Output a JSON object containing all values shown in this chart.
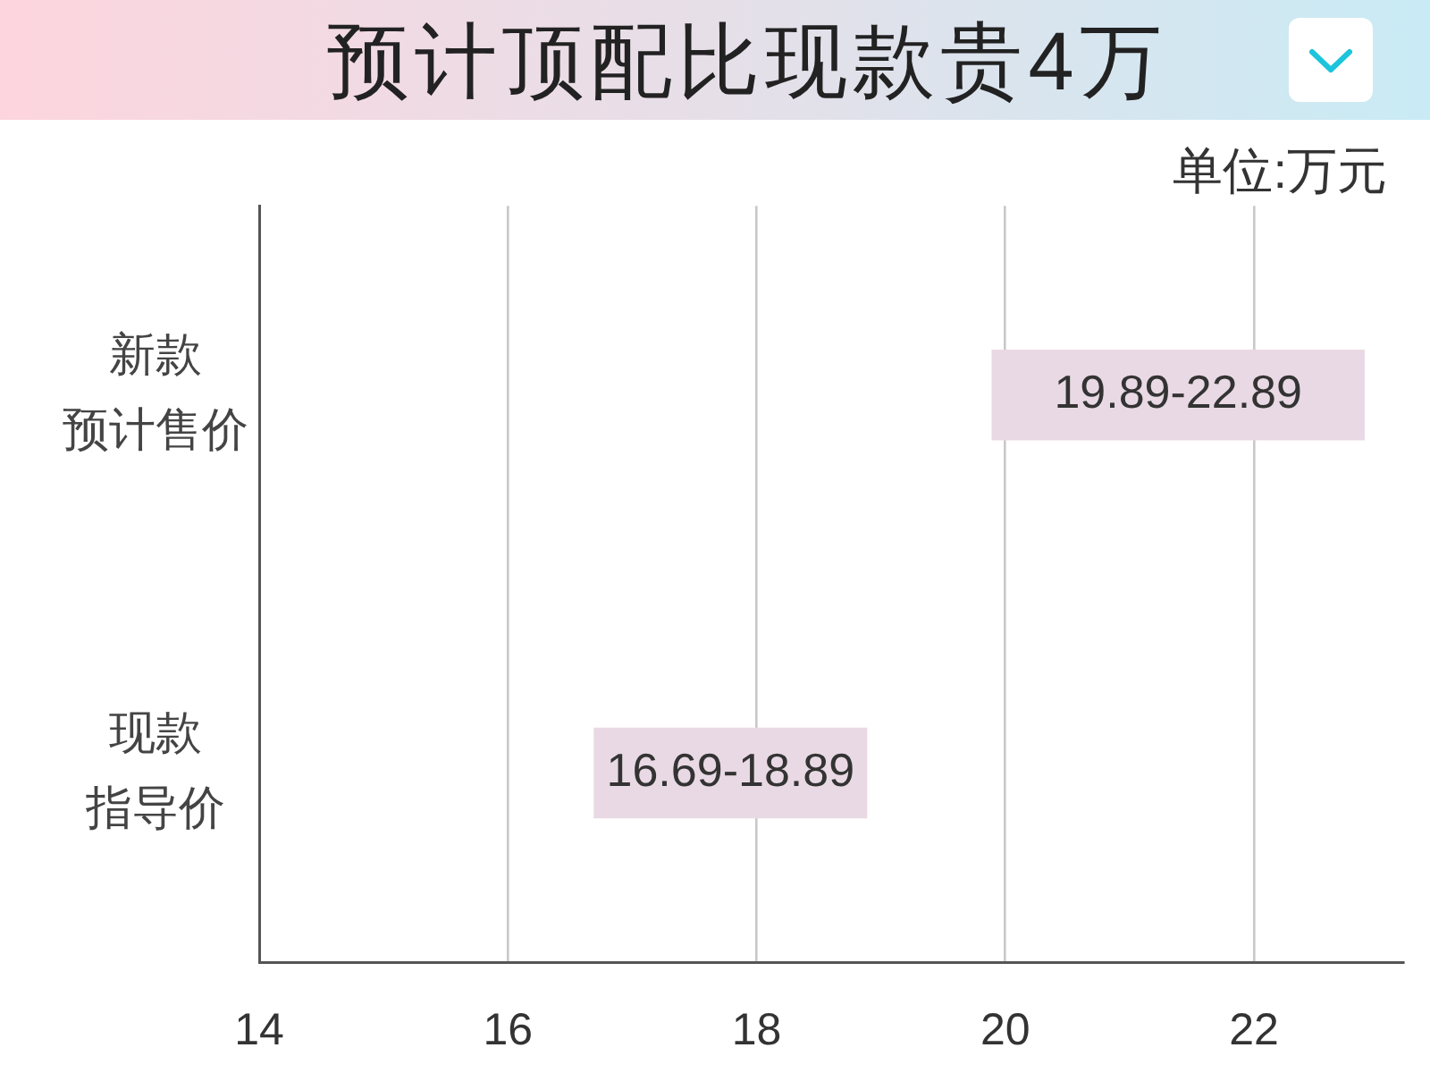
{
  "chart_data": {
    "type": "bar",
    "title": "预计顶配比现款贵4万",
    "annotations": [
      "单位:万元"
    ],
    "orientation": "horizontal",
    "categories": [
      "新款预计售价",
      "现款指导价"
    ],
    "base": [
      19.89,
      16.69
    ],
    "values": [
      3.0,
      2.2
    ],
    "value_labels": [
      "19.89-22.89",
      "16.69-18.89"
    ],
    "color": "#e9d9e4",
    "xlim": [
      14,
      23.2
    ],
    "xticks": [
      14,
      16,
      18,
      20,
      22
    ],
    "grid": "x"
  }
}
